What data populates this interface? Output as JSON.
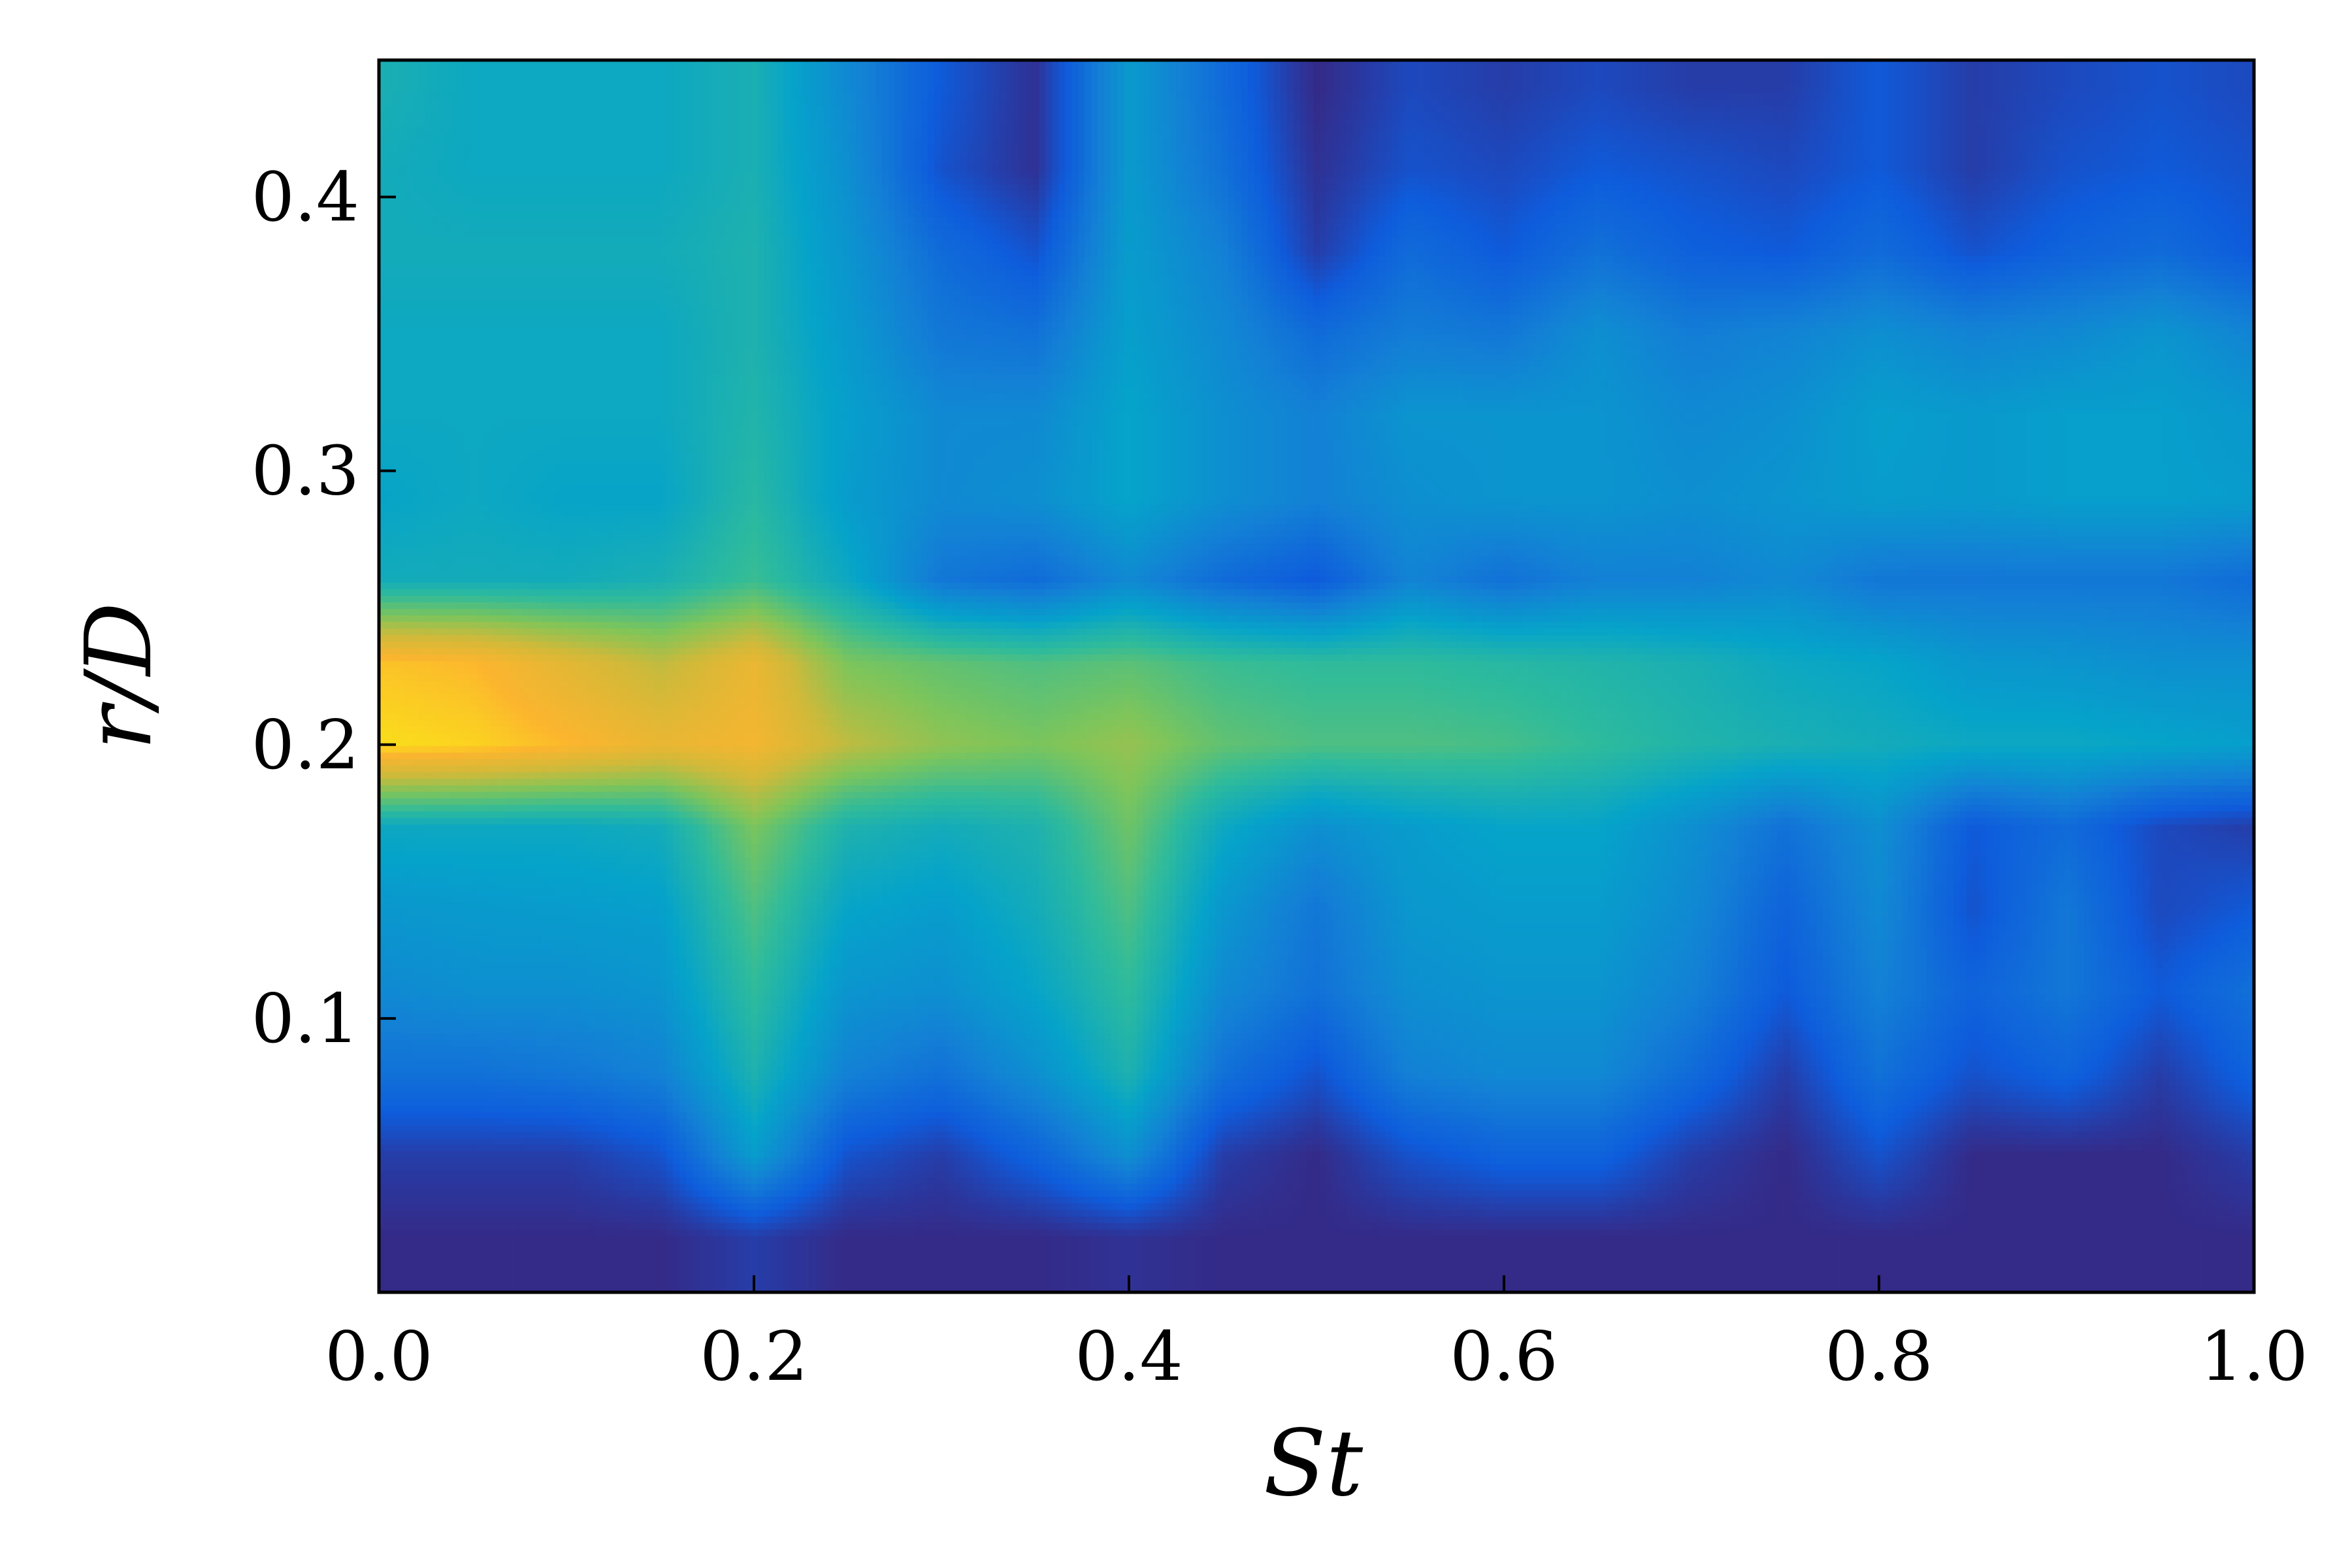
{
  "chart_data": {
    "type": "heatmap",
    "title": "",
    "xlabel": "St",
    "ylabel": "r/D",
    "xlim": [
      0.0,
      1.0
    ],
    "ylim": [
      0.0,
      0.45
    ],
    "xticks": [
      "0.0",
      "0.2",
      "0.4",
      "0.6",
      "0.8",
      "1.0"
    ],
    "yticks": [
      "0.1",
      "0.2",
      "0.3",
      "0.4"
    ],
    "grid": false,
    "legend": "none",
    "colormap": [
      "#352a87",
      "#0f5cdd",
      "#1481d6",
      "#06a4ca",
      "#2ebb9d",
      "#7fc55a",
      "#d2b93a",
      "#fcb52e",
      "#f9fb0e"
    ],
    "x": [
      0.0,
      0.05,
      0.1,
      0.15,
      0.2,
      0.25,
      0.3,
      0.35,
      0.4,
      0.45,
      0.5,
      0.55,
      0.6,
      0.65,
      0.7,
      0.75,
      0.8,
      0.85,
      0.9,
      0.95,
      1.0
    ],
    "y": [
      0.02,
      0.05,
      0.08,
      0.11,
      0.14,
      0.17,
      0.2,
      0.23,
      0.26,
      0.29,
      0.32,
      0.35,
      0.38,
      0.41,
      0.44
    ],
    "z": [
      [
        0.0,
        0.0,
        0.0,
        0.0,
        0.05,
        0.0,
        0.0,
        0.0,
        0.02,
        0.0,
        0.0,
        0.0,
        0.0,
        0.0,
        0.0,
        0.0,
        0.0,
        0.0,
        0.0,
        0.0,
        0.0
      ],
      [
        0.05,
        0.05,
        0.05,
        0.1,
        0.35,
        0.1,
        0.05,
        0.15,
        0.3,
        0.05,
        0.0,
        0.1,
        0.15,
        0.15,
        0.05,
        0.0,
        0.1,
        0.0,
        0.0,
        0.0,
        0.05
      ],
      [
        0.2,
        0.2,
        0.22,
        0.25,
        0.45,
        0.25,
        0.2,
        0.3,
        0.45,
        0.2,
        0.1,
        0.25,
        0.28,
        0.28,
        0.18,
        0.05,
        0.2,
        0.1,
        0.15,
        0.05,
        0.15
      ],
      [
        0.28,
        0.3,
        0.3,
        0.32,
        0.5,
        0.32,
        0.3,
        0.38,
        0.5,
        0.28,
        0.2,
        0.3,
        0.32,
        0.32,
        0.25,
        0.12,
        0.25,
        0.15,
        0.22,
        0.12,
        0.2
      ],
      [
        0.33,
        0.34,
        0.35,
        0.36,
        0.55,
        0.38,
        0.35,
        0.42,
        0.55,
        0.33,
        0.22,
        0.33,
        0.35,
        0.35,
        0.28,
        0.15,
        0.28,
        0.1,
        0.22,
        0.08,
        0.12
      ],
      [
        0.4,
        0.4,
        0.4,
        0.42,
        0.62,
        0.45,
        0.42,
        0.45,
        0.6,
        0.4,
        0.3,
        0.35,
        0.38,
        0.38,
        0.3,
        0.2,
        0.3,
        0.12,
        0.18,
        0.08,
        0.05
      ],
      [
        0.95,
        0.93,
        0.88,
        0.82,
        0.85,
        0.72,
        0.65,
        0.62,
        0.66,
        0.58,
        0.55,
        0.55,
        0.54,
        0.5,
        0.46,
        0.44,
        0.42,
        0.4,
        0.4,
        0.38,
        0.36
      ],
      [
        0.9,
        0.88,
        0.8,
        0.72,
        0.82,
        0.62,
        0.58,
        0.55,
        0.57,
        0.52,
        0.5,
        0.5,
        0.48,
        0.46,
        0.44,
        0.4,
        0.38,
        0.33,
        0.32,
        0.3,
        0.3
      ],
      [
        0.42,
        0.42,
        0.42,
        0.44,
        0.52,
        0.4,
        0.22,
        0.18,
        0.28,
        0.18,
        0.12,
        0.26,
        0.2,
        0.25,
        0.25,
        0.28,
        0.22,
        0.22,
        0.22,
        0.22,
        0.18
      ],
      [
        0.38,
        0.4,
        0.38,
        0.38,
        0.48,
        0.35,
        0.28,
        0.3,
        0.38,
        0.3,
        0.25,
        0.3,
        0.32,
        0.32,
        0.3,
        0.32,
        0.35,
        0.34,
        0.36,
        0.36,
        0.35
      ],
      [
        0.4,
        0.4,
        0.4,
        0.4,
        0.46,
        0.36,
        0.28,
        0.28,
        0.38,
        0.3,
        0.25,
        0.32,
        0.32,
        0.32,
        0.28,
        0.3,
        0.36,
        0.34,
        0.36,
        0.36,
        0.33
      ],
      [
        0.4,
        0.4,
        0.4,
        0.4,
        0.45,
        0.34,
        0.22,
        0.2,
        0.36,
        0.28,
        0.18,
        0.24,
        0.22,
        0.3,
        0.24,
        0.26,
        0.3,
        0.26,
        0.28,
        0.32,
        0.26
      ],
      [
        0.42,
        0.42,
        0.42,
        0.42,
        0.45,
        0.32,
        0.18,
        0.1,
        0.35,
        0.25,
        0.05,
        0.18,
        0.12,
        0.2,
        0.14,
        0.12,
        0.18,
        0.1,
        0.15,
        0.18,
        0.12
      ],
      [
        0.42,
        0.4,
        0.4,
        0.4,
        0.44,
        0.3,
        0.1,
        0.02,
        0.34,
        0.2,
        0.02,
        0.1,
        0.08,
        0.12,
        0.1,
        0.08,
        0.12,
        0.05,
        0.1,
        0.12,
        0.1
      ],
      [
        0.44,
        0.4,
        0.4,
        0.4,
        0.44,
        0.28,
        0.12,
        0.02,
        0.34,
        0.18,
        0.0,
        0.08,
        0.05,
        0.08,
        0.05,
        0.05,
        0.12,
        0.05,
        0.08,
        0.1,
        0.08
      ]
    ]
  }
}
